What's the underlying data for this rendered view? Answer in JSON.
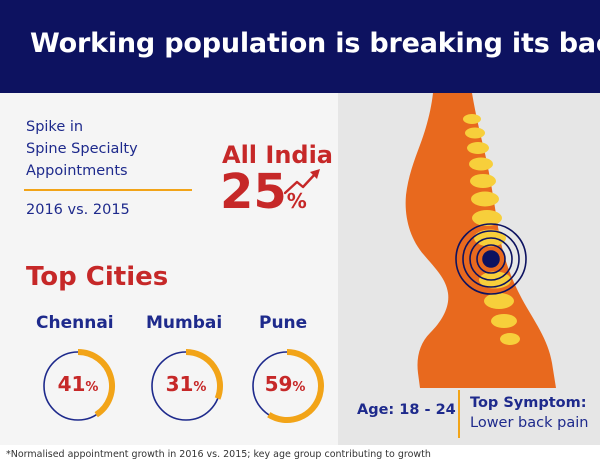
{
  "header": {
    "title": "Working population is breaking its back"
  },
  "spike": {
    "lines": [
      "Spike in",
      "Spine Specialty",
      "Appointments"
    ],
    "comparison": "2016 vs. 2015"
  },
  "all_india": {
    "label": "All India",
    "value": "25",
    "unit": "%",
    "level": 25,
    "icon": "trend-up-arrow-icon"
  },
  "top_cities": {
    "title": "Top Cities",
    "cities": [
      {
        "name": "Chennai",
        "value": "41",
        "unit": "%",
        "level": 41
      },
      {
        "name": "Mumbai",
        "value": "31",
        "unit": "%",
        "level": 31
      },
      {
        "name": "Pune",
        "value": "59",
        "unit": "%",
        "level": 59
      }
    ]
  },
  "demographics": {
    "age": "Age: 18 - 24",
    "symptom_title": "Top Symptom:",
    "symptom_value": "Lower back pain"
  },
  "footnote": "*Normalised appointment growth in 2016 vs. 2015; key age group contributing to growth",
  "colors": {
    "header_bg": "#0d1260",
    "accent_red": "#c62828",
    "accent_blue": "#1e2a8c",
    "accent_orange": "#f2a418",
    "body_orange": "#e8691e",
    "spine_yellow": "#f7cf3b"
  }
}
